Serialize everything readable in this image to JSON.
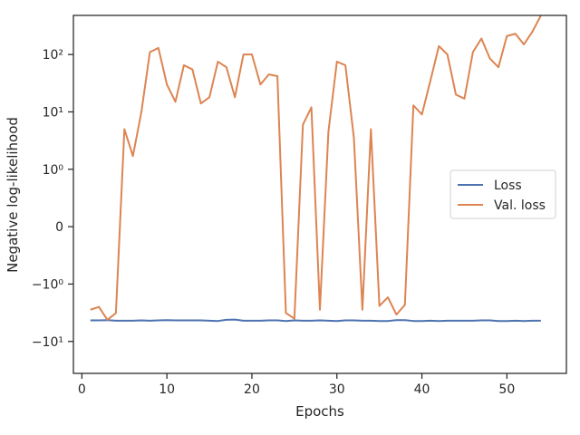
{
  "chart_data": {
    "type": "line",
    "title": "",
    "xlabel": "Epochs",
    "ylabel": "Negative log-likelihood",
    "yscale": "symlog",
    "xlim": [
      -1,
      57
    ],
    "x_ticks": [
      0,
      10,
      20,
      30,
      40,
      50
    ],
    "y_ticks": [
      {
        "value": 100,
        "label": "10²"
      },
      {
        "value": 10,
        "label": "10¹"
      },
      {
        "value": 1,
        "label": "10⁰"
      },
      {
        "value": 0,
        "label": "0"
      },
      {
        "value": -1,
        "label": "−10⁰"
      },
      {
        "value": -10,
        "label": "−10¹"
      }
    ],
    "legend_position": "center-right",
    "grid": false,
    "series": [
      {
        "name": "Loss",
        "color": "#4c72b0",
        "x": [
          1,
          2,
          3,
          4,
          5,
          6,
          7,
          8,
          9,
          10,
          11,
          12,
          13,
          14,
          15,
          16,
          17,
          18,
          19,
          20,
          21,
          22,
          23,
          24,
          25,
          26,
          27,
          28,
          29,
          30,
          31,
          32,
          33,
          34,
          35,
          36,
          37,
          38,
          39,
          40,
          41,
          42,
          43,
          44,
          45,
          46,
          47,
          48,
          49,
          50,
          51,
          52,
          53,
          54
        ],
        "values": [
          -4.3,
          -4.3,
          -4.25,
          -4.35,
          -4.35,
          -4.35,
          -4.3,
          -4.35,
          -4.3,
          -4.25,
          -4.3,
          -4.3,
          -4.3,
          -4.3,
          -4.35,
          -4.4,
          -4.2,
          -4.15,
          -4.35,
          -4.35,
          -4.35,
          -4.3,
          -4.3,
          -4.4,
          -4.3,
          -4.35,
          -4.35,
          -4.3,
          -4.35,
          -4.4,
          -4.3,
          -4.3,
          -4.35,
          -4.35,
          -4.4,
          -4.4,
          -4.25,
          -4.25,
          -4.4,
          -4.4,
          -4.35,
          -4.4,
          -4.35,
          -4.35,
          -4.35,
          -4.35,
          -4.3,
          -4.3,
          -4.4,
          -4.4,
          -4.35,
          -4.4,
          -4.35,
          -4.35
        ]
      },
      {
        "name": "Val. loss",
        "color": "#dd8452",
        "x": [
          1,
          2,
          3,
          4,
          5,
          6,
          7,
          8,
          9,
          10,
          11,
          12,
          13,
          14,
          15,
          16,
          17,
          18,
          19,
          20,
          21,
          22,
          23,
          24,
          25,
          26,
          27,
          28,
          29,
          30,
          31,
          32,
          33,
          34,
          35,
          36,
          37,
          38,
          39,
          40,
          41,
          42,
          43,
          44,
          45,
          46,
          47,
          48,
          49,
          50,
          51,
          52,
          53,
          54
        ],
        "values": [
          -2.8,
          -2.5,
          -4.2,
          -3.2,
          5,
          1.7,
          10,
          110,
          130,
          30,
          15,
          65,
          55,
          14,
          18,
          75,
          60,
          18,
          100,
          100,
          30,
          45,
          42,
          -3.2,
          -4,
          6,
          12,
          -2.8,
          4.5,
          75,
          65,
          3.5,
          -2.8,
          5,
          -2.4,
          -1.7,
          -3.4,
          -2.3,
          13,
          9,
          35,
          140,
          100,
          20,
          17,
          110,
          190,
          85,
          60,
          210,
          230,
          150,
          250,
          480
        ]
      }
    ]
  }
}
